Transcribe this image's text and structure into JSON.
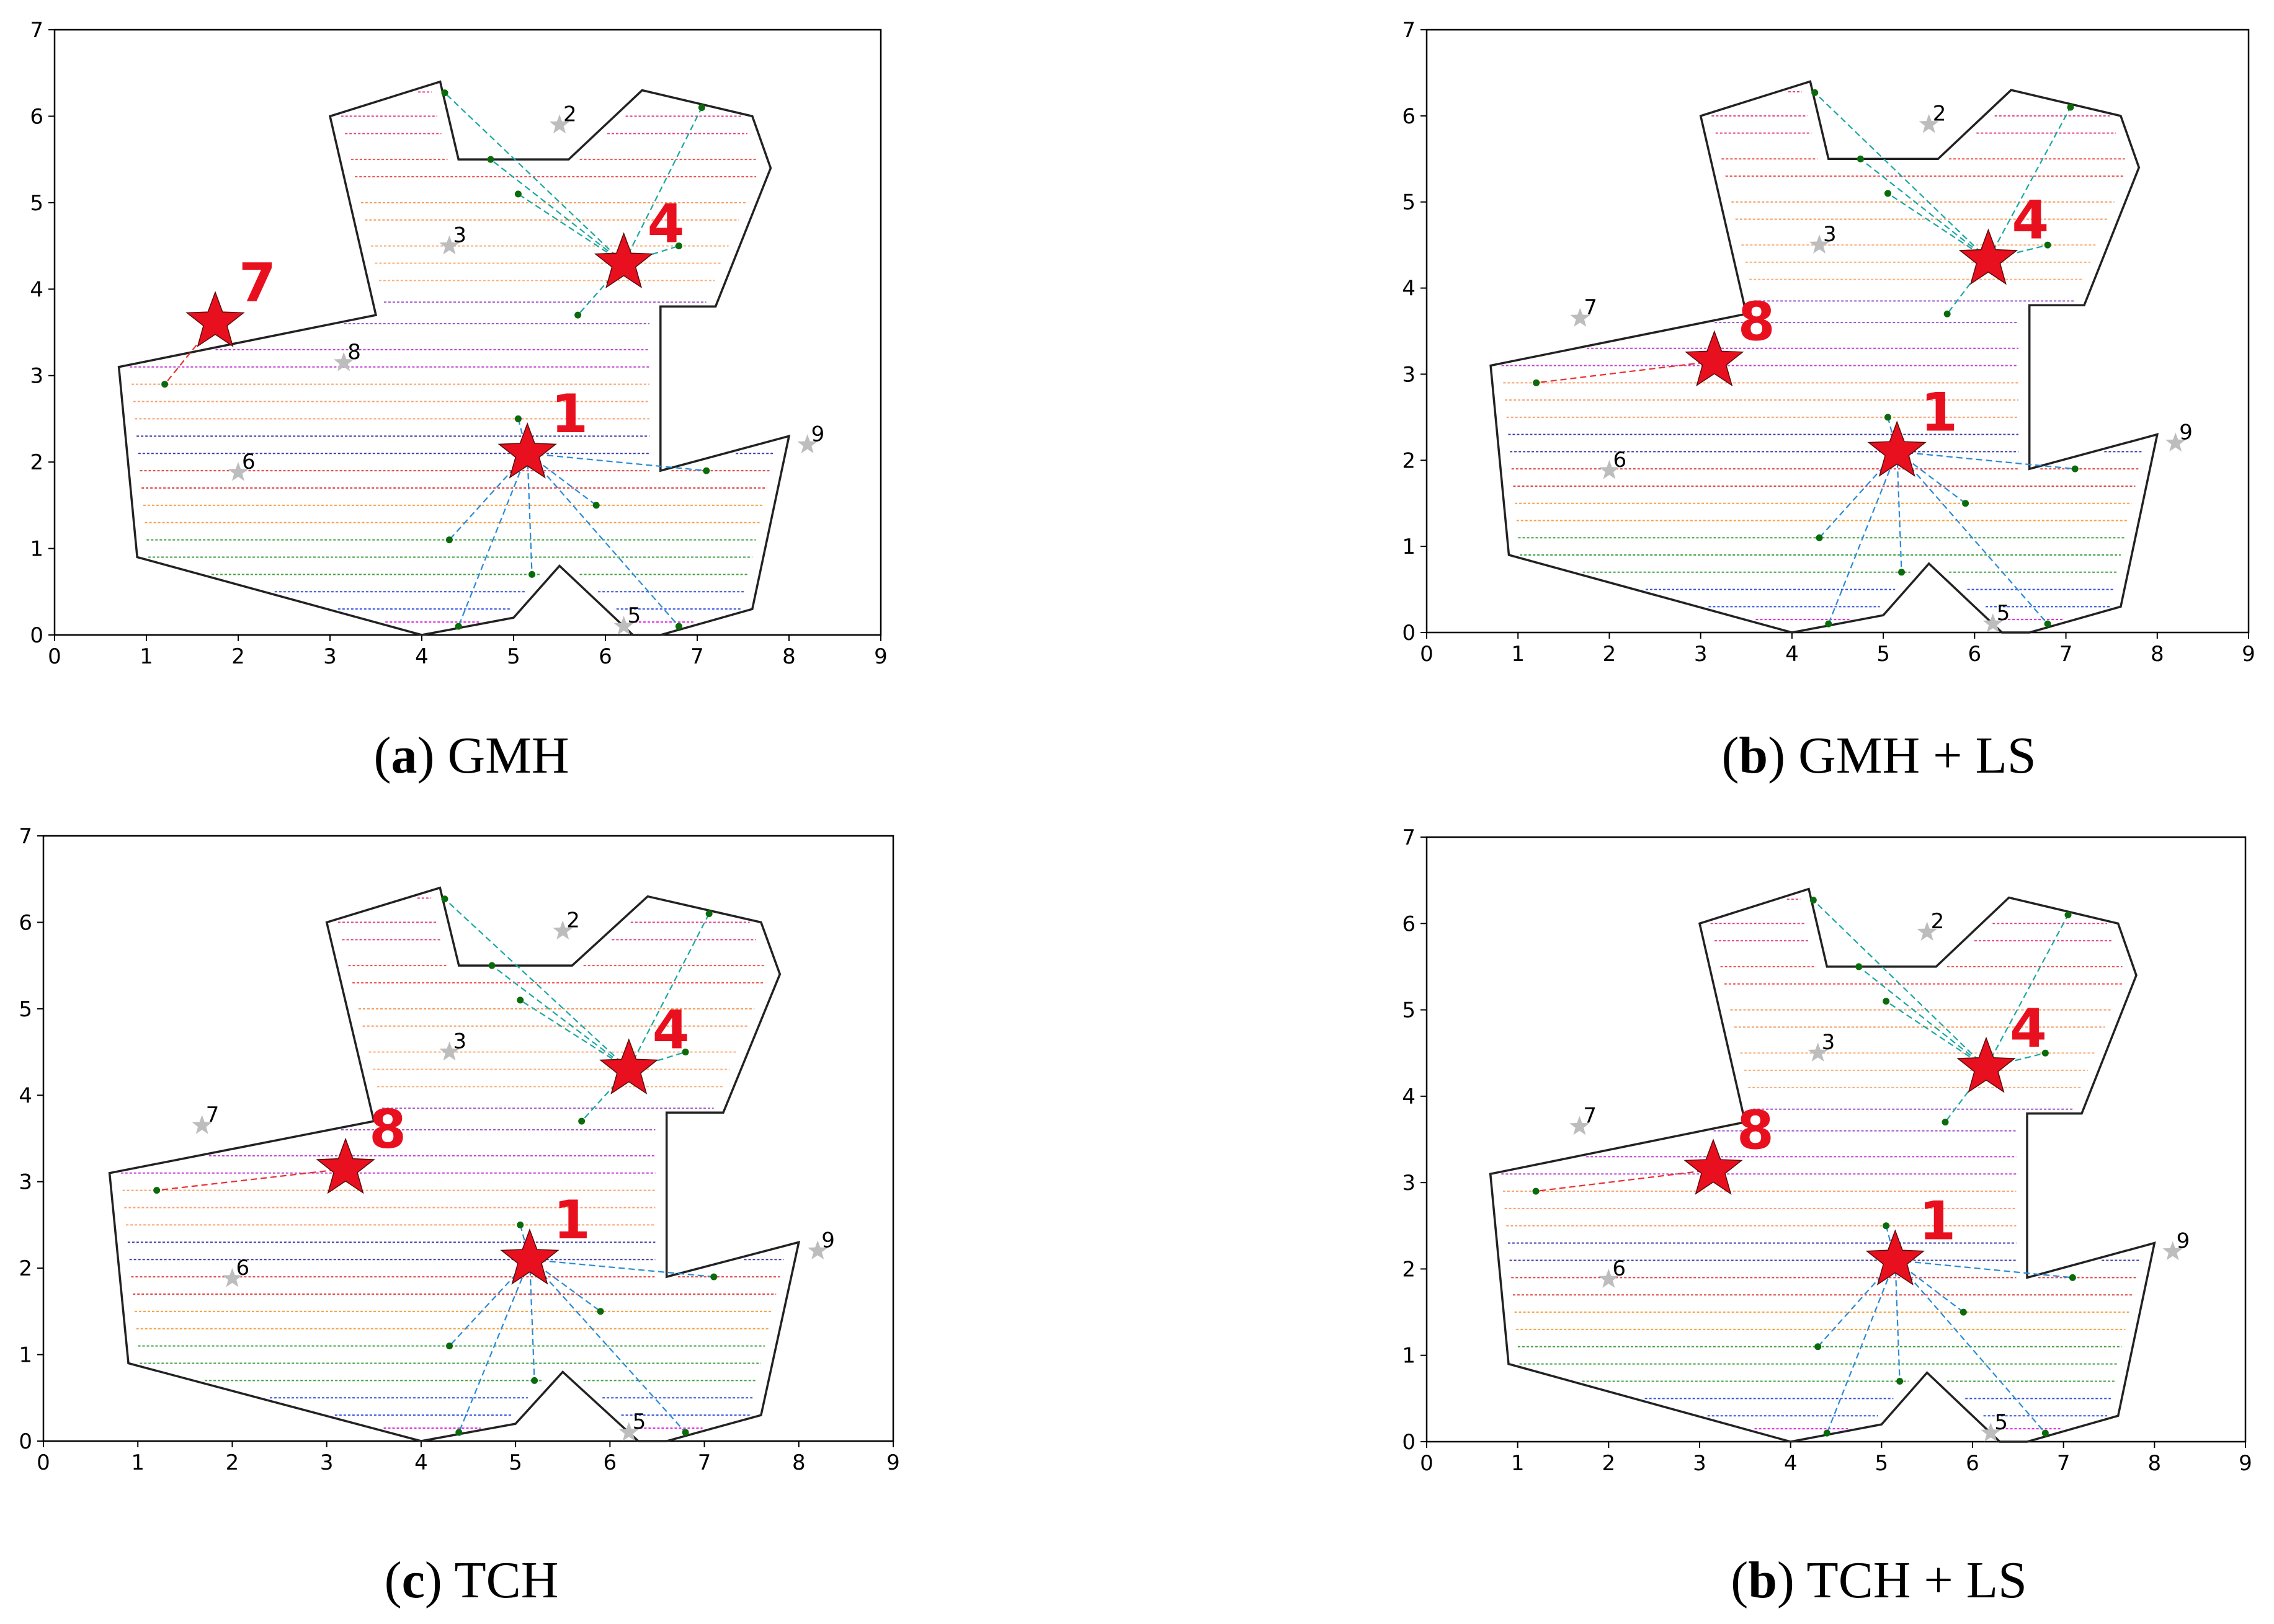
{
  "colors": {
    "hub": "#e8101e",
    "site": "#bdbdbd",
    "boundary": "#222222",
    "waypoint": "#0a6b0a",
    "cyan_link": "#1aa7a3",
    "blue_link": "#2a8ad6",
    "red_link": "#e83030",
    "stripes": [
      "#e0408a",
      "#f25050",
      "#f39a5c",
      "#f7b07a",
      "#a055c7",
      "#c040d0",
      "#f7a070",
      "#3a3aa8",
      "#e04040",
      "#f8a040",
      "#40a040",
      "#3050e0",
      "#e020e0"
    ]
  },
  "shared": {
    "boundary": [
      [
        4.2,
        6.4
      ],
      [
        4.4,
        5.5
      ],
      [
        5.6,
        5.5
      ],
      [
        6.4,
        6.3
      ],
      [
        7.6,
        6.0
      ],
      [
        7.8,
        5.4
      ],
      [
        7.2,
        3.8
      ],
      [
        6.6,
        3.8
      ],
      [
        6.6,
        1.9
      ],
      [
        8.0,
        2.3
      ],
      [
        7.6,
        0.3
      ],
      [
        6.6,
        0.0
      ],
      [
        6.3,
        0.0
      ],
      [
        5.5,
        0.8
      ],
      [
        5.0,
        0.2
      ],
      [
        4.0,
        0.0
      ],
      [
        0.9,
        0.9
      ],
      [
        0.7,
        3.1
      ],
      [
        3.5,
        3.7
      ],
      [
        3.0,
        6.0
      ]
    ],
    "sites": [
      {
        "id": "1",
        "x": 5.15,
        "y": 2.1
      },
      {
        "id": "2",
        "x": 5.5,
        "y": 5.9
      },
      {
        "id": "3",
        "x": 4.3,
        "y": 4.5
      },
      {
        "id": "4",
        "x": 6.15,
        "y": 4.3
      },
      {
        "id": "5",
        "x": 6.2,
        "y": 0.1
      },
      {
        "id": "6",
        "x": 2.0,
        "y": 1.88
      },
      {
        "id": "7",
        "x": 1.68,
        "y": 3.65
      },
      {
        "id": "8",
        "x": 3.15,
        "y": 3.15
      },
      {
        "id": "9",
        "x": 8.2,
        "y": 2.2
      }
    ],
    "waypoints": [
      [
        4.25,
        6.27
      ],
      [
        7.05,
        6.1
      ],
      [
        4.75,
        5.5
      ],
      [
        5.05,
        5.1
      ],
      [
        6.8,
        4.5
      ],
      [
        5.7,
        3.7
      ],
      [
        1.2,
        2.9
      ],
      [
        5.05,
        2.5
      ],
      [
        7.1,
        1.9
      ],
      [
        5.9,
        1.5
      ],
      [
        4.3,
        1.1
      ],
      [
        5.2,
        0.7
      ],
      [
        4.4,
        0.1
      ],
      [
        6.8,
        0.1
      ]
    ],
    "stripe_y": [
      6.28,
      6.0,
      5.8,
      5.5,
      5.3,
      5.0,
      4.8,
      4.5,
      4.3,
      4.1,
      3.85,
      3.6,
      3.3,
      3.1,
      2.9,
      2.7,
      2.5,
      2.3,
      2.1,
      1.9,
      1.7,
      1.5,
      1.3,
      1.1,
      0.9,
      0.7,
      0.5,
      0.3,
      0.15
    ]
  },
  "panels": [
    {
      "id": "a",
      "caption_letter": "a",
      "caption_method": "GMH",
      "ticks_x": [
        "0",
        "1",
        "2",
        "3",
        "4",
        "5",
        "6",
        "7",
        "8",
        "9"
      ],
      "ticks_y": [
        "0",
        "1",
        "2",
        "3",
        "4",
        "5",
        "6",
        "7"
      ],
      "hubs": [
        {
          "id": "7",
          "label": "7",
          "x": 1.75,
          "y": 3.62
        },
        {
          "id": "1",
          "label": "1",
          "x": 5.15,
          "y": 2.1
        },
        {
          "id": "4",
          "label": "4",
          "x": 6.2,
          "y": 4.3
        }
      ],
      "gray_sites": [
        "2",
        "3",
        "5",
        "6",
        "8",
        "9"
      ]
    },
    {
      "id": "b",
      "caption_letter": "b",
      "caption_method": "GMH + LS",
      "ticks_x": [
        "0",
        "1",
        "2",
        "3",
        "4",
        "5",
        "6",
        "7",
        "8",
        "9"
      ],
      "ticks_y": [
        "0",
        "1",
        "2",
        "3",
        "4",
        "5",
        "6",
        "7"
      ],
      "hubs": [
        {
          "id": "8",
          "label": "8",
          "x": 3.15,
          "y": 3.15
        },
        {
          "id": "1",
          "label": "1",
          "x": 5.15,
          "y": 2.1
        },
        {
          "id": "4",
          "label": "4",
          "x": 6.15,
          "y": 4.33
        }
      ],
      "gray_sites": [
        "2",
        "3",
        "5",
        "6",
        "7",
        "9"
      ]
    },
    {
      "id": "c",
      "caption_letter": "c",
      "caption_method": "TCH",
      "ticks_x": [
        "0",
        "1",
        "2",
        "3",
        "4",
        "5",
        "6",
        "7",
        "8",
        "9"
      ],
      "ticks_y": [
        "0",
        "1",
        "2",
        "3",
        "4",
        "5",
        "6",
        "7"
      ],
      "hubs": [
        {
          "id": "8",
          "label": "8",
          "x": 3.2,
          "y": 3.15
        },
        {
          "id": "1",
          "label": "1",
          "x": 5.15,
          "y": 2.1
        },
        {
          "id": "4",
          "label": "4",
          "x": 6.2,
          "y": 4.3
        }
      ],
      "gray_sites": [
        "2",
        "3",
        "5",
        "6",
        "7",
        "9"
      ]
    },
    {
      "id": "d",
      "caption_letter": "b",
      "caption_method": "TCH + LS",
      "ticks_x": [
        "0",
        "1",
        "2",
        "3",
        "4",
        "5",
        "6",
        "7",
        "8",
        "9"
      ],
      "ticks_y": [
        "0",
        "1",
        "2",
        "3",
        "4",
        "5",
        "6",
        "7"
      ],
      "hubs": [
        {
          "id": "8",
          "label": "8",
          "x": 3.15,
          "y": 3.15
        },
        {
          "id": "1",
          "label": "1",
          "x": 5.15,
          "y": 2.1
        },
        {
          "id": "4",
          "label": "4",
          "x": 6.15,
          "y": 4.33
        }
      ],
      "gray_sites": [
        "2",
        "3",
        "5",
        "6",
        "7",
        "9"
      ]
    }
  ]
}
